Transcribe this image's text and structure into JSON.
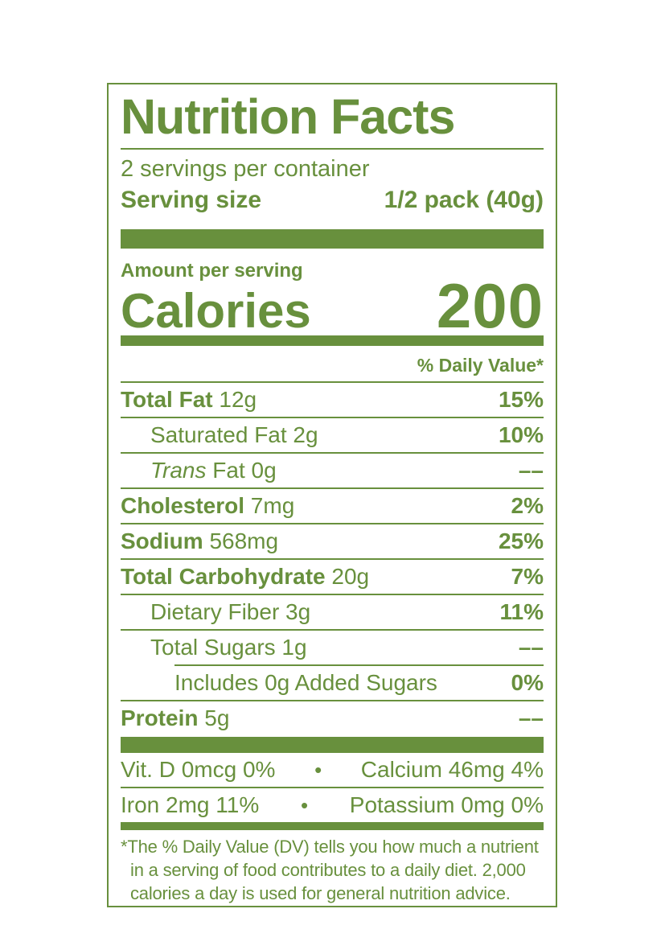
{
  "colors": {
    "green": "#68903D",
    "background": "#FFFFFF"
  },
  "label": {
    "title": "Nutrition Facts",
    "servings_per_container": "2 servings per container",
    "serving_size_label": "Serving size",
    "serving_size_value": "1/2 pack (40g)",
    "amount_per_serving": "Amount per serving",
    "calories_label": "Calories",
    "calories_value": "200",
    "daily_value_header": "% Daily Value*",
    "rows": [
      {
        "name": "Total Fat",
        "amount": "12g",
        "dv": "15%",
        "bold": true,
        "indent": 0
      },
      {
        "name": "Saturated Fat",
        "amount": "2g",
        "dv": "10%",
        "bold": false,
        "indent": 1
      },
      {
        "name_italic": "Trans",
        "name": "Fat",
        "amount": "0g",
        "dv": "––",
        "bold": false,
        "indent": 1
      },
      {
        "name": "Cholesterol",
        "amount": "7mg",
        "dv": "2%",
        "bold": true,
        "indent": 0
      },
      {
        "name": "Sodium",
        "amount": "568mg",
        "dv": "25%",
        "bold": true,
        "indent": 0
      },
      {
        "name": "Total Carbohydrate",
        "amount": "20g",
        "dv": "7%",
        "bold": true,
        "indent": 0
      },
      {
        "name": "Dietary Fiber",
        "amount": "3g",
        "dv": "11%",
        "bold": false,
        "indent": 1
      },
      {
        "name": "Total Sugars",
        "amount": "1g",
        "dv": "––",
        "bold": false,
        "indent": 1,
        "divider_below": "indented"
      },
      {
        "name": "Includes 0g Added Sugars",
        "amount": "",
        "dv": "0%",
        "bold": false,
        "indent": 2
      },
      {
        "name": "Protein",
        "amount": "5g",
        "dv": "––",
        "bold": true,
        "indent": 0,
        "divider_below": "none"
      }
    ],
    "micros": [
      {
        "left": "Vit. D 0mcg 0%",
        "right": "Calcium 46mg 4%"
      },
      {
        "left": "Iron 2mg 11%",
        "right": "Potassium 0mg 0%"
      }
    ],
    "bullet": "•",
    "footnote_lines": [
      "*The % Daily Value (DV) tells you how much a nutrient",
      "in a serving of food contributes to a daily diet. 2,000",
      "calories a day is used for general nutrition advice."
    ]
  }
}
